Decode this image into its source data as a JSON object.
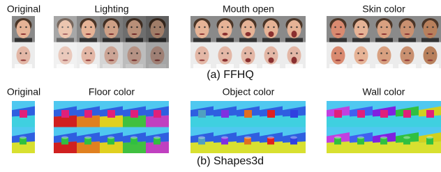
{
  "panels": [
    {
      "original_label": "Original",
      "columns": [
        "Lighting",
        "Mouth open",
        "Skin color"
      ],
      "caption": "(a) FFHQ"
    },
    {
      "original_label": "Original",
      "columns": [
        "Floor color",
        "Object color",
        "Wall color"
      ],
      "caption": "(b) Shapes3d"
    }
  ]
}
